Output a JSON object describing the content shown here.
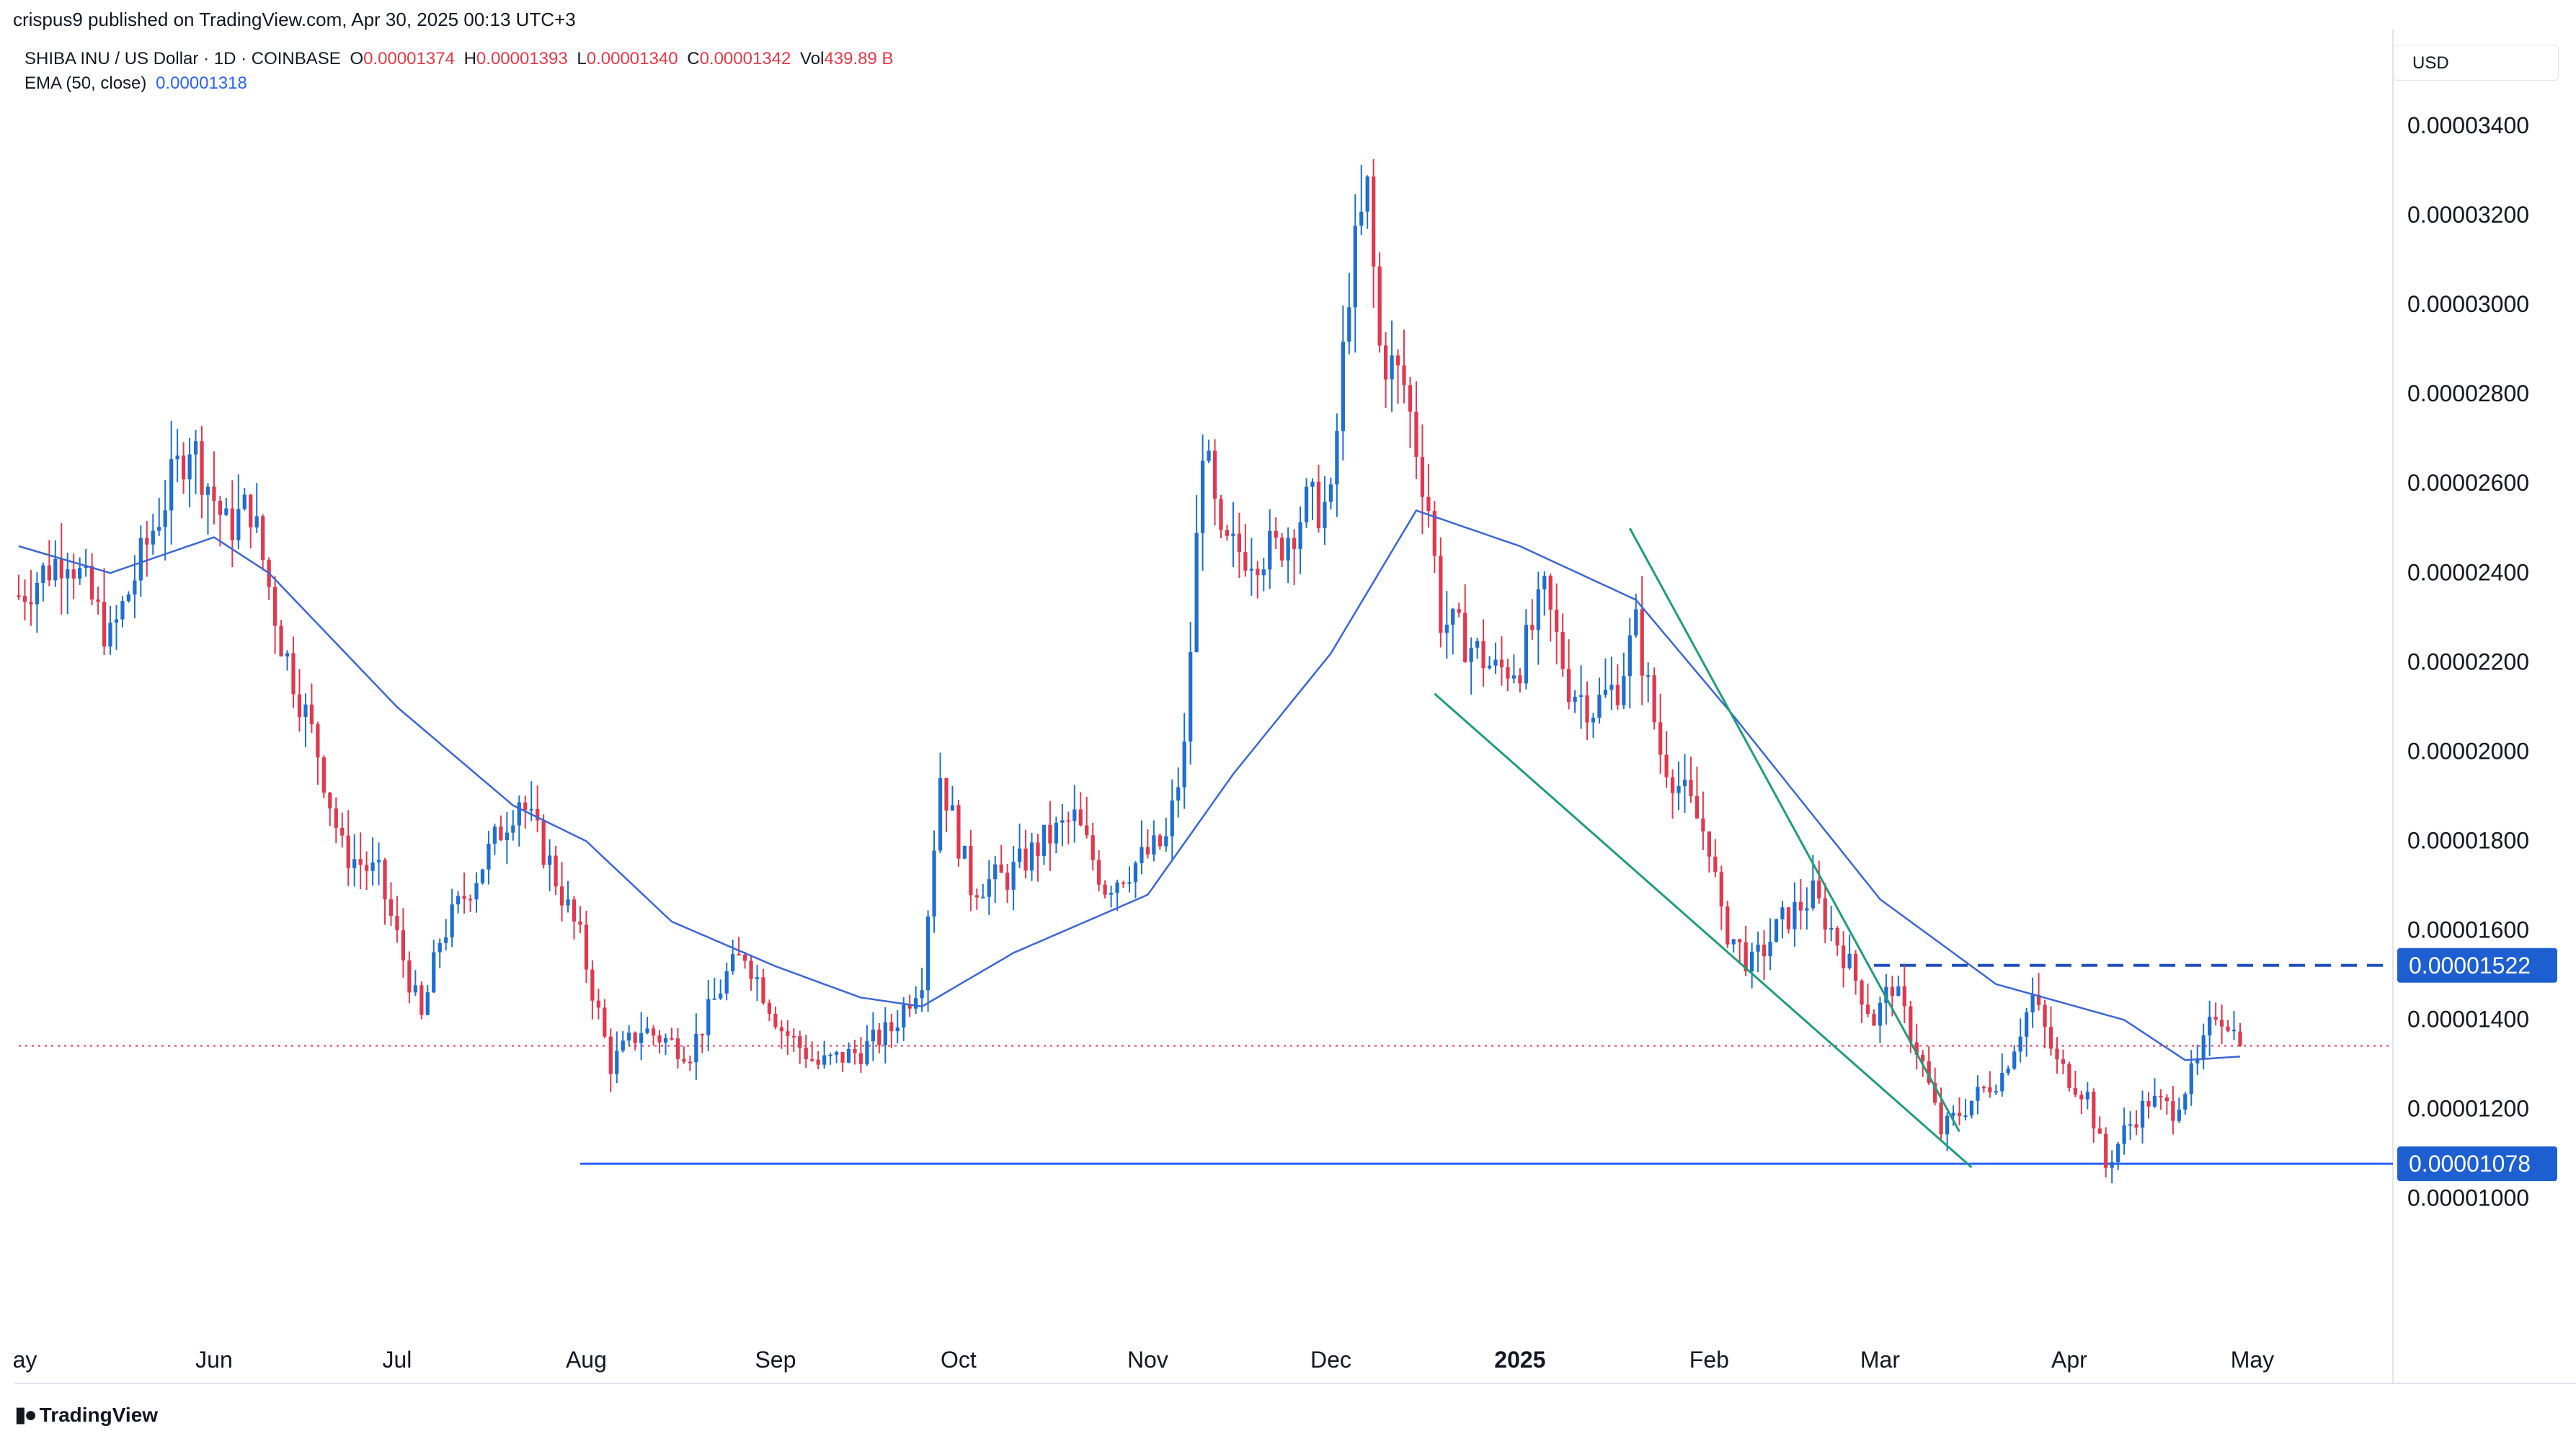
{
  "header": {
    "published_line": "crispus9 published on TradingView.com, Apr 30, 2025 00:13 UTC+3"
  },
  "legend": {
    "symbol": "SHIBA INU / US Dollar · 1D · COINBASE",
    "o_label": "O",
    "o_value": "0.00001374",
    "h_label": "H",
    "h_value": "0.00001393",
    "l_label": "L",
    "l_value": "0.00001340",
    "c_label": "C",
    "c_value": "0.00001342",
    "vol_label": "Vol",
    "vol_value": "439.89 B",
    "ema_label": "EMA (50, close)",
    "ema_value": "0.00001318"
  },
  "currency": "USD",
  "branding": {
    "logo_text": "TradingView",
    "logo_icon": "tradingview-logo-icon"
  },
  "colors": {
    "up": "#1e6fd0",
    "down": "#e0394f",
    "ema": "#3a66d6",
    "trendline": "#1f9d7a",
    "support_line": "#2962ff",
    "resistance_line": "#1e4fbf",
    "last_price_line": "#e0394f",
    "label_bg": "#1d5fd0"
  },
  "chart_data": {
    "type": "candlestick",
    "title": "SHIBA INU / US Dollar",
    "ylim": [
      7.8e-06,
      3.65e-05
    ],
    "y_ticks": [
      "0.00001000",
      "0.00001200",
      "0.00001400",
      "0.00001600",
      "0.00001800",
      "0.00002000",
      "0.00002200",
      "0.00002400",
      "0.00002600",
      "0.00002800",
      "0.00003000",
      "0.00003200",
      "0.00003400"
    ],
    "x_ticks": [
      "ay",
      "Jun",
      "Jul",
      "Aug",
      "Sep",
      "Oct",
      "Nov",
      "Dec",
      "2025",
      "Feb",
      "Mar",
      "Apr",
      "May"
    ],
    "x_tick_dates": [
      "2024-05-01",
      "2024-06-01",
      "2024-07-01",
      "2024-08-01",
      "2024-09-01",
      "2024-10-01",
      "2024-11-01",
      "2024-12-01",
      "2025-01-01",
      "2025-02-01",
      "2025-03-01",
      "2025-04-01",
      "2025-05-01"
    ],
    "bold_x_tick": "2025",
    "price_labels": [
      {
        "text": "0.00001522",
        "value": 1.522e-05
      },
      {
        "text": "0.00001078",
        "value": 1.078e-05
      }
    ],
    "horizontal_lines": [
      {
        "name": "resistance",
        "value": 1.522e-05,
        "style": "dashed",
        "from": "2025-02-28"
      },
      {
        "name": "support",
        "value": 1.078e-05,
        "style": "solid",
        "from": "2024-07-31"
      },
      {
        "name": "last-price",
        "value": 1.342e-05,
        "style": "dotted",
        "from": "2024-04-30"
      }
    ],
    "trendlines": [
      {
        "name": "upper-wedge-line",
        "start": [
          "2025-01-19",
          2.5e-05
        ],
        "end": [
          "2025-03-14",
          1.15e-05
        ]
      },
      {
        "name": "lower-wedge-line",
        "start": [
          "2024-12-18",
          2.13e-05
        ],
        "end": [
          "2025-03-16",
          1.07e-05
        ]
      }
    ],
    "close_anchors": [
      [
        "2024-04-30",
        2.35e-05
      ],
      [
        "2024-05-08",
        2.45e-05
      ],
      [
        "2024-05-15",
        2.25e-05
      ],
      [
        "2024-05-22",
        2.5e-05
      ],
      [
        "2024-05-28",
        2.7e-05
      ],
      [
        "2024-06-03",
        2.5e-05
      ],
      [
        "2024-06-07",
        2.55e-05
      ],
      [
        "2024-06-12",
        2.25e-05
      ],
      [
        "2024-06-18",
        2e-05
      ],
      [
        "2024-06-22",
        1.78e-05
      ],
      [
        "2024-06-28",
        1.72e-05
      ],
      [
        "2024-07-05",
        1.4e-05
      ],
      [
        "2024-07-08",
        1.58e-05
      ],
      [
        "2024-07-15",
        1.75e-05
      ],
      [
        "2024-07-21",
        1.9e-05
      ],
      [
        "2024-07-26",
        1.75e-05
      ],
      [
        "2024-07-31",
        1.58e-05
      ],
      [
        "2024-08-05",
        1.3e-05
      ],
      [
        "2024-08-10",
        1.38e-05
      ],
      [
        "2024-08-18",
        1.33e-05
      ],
      [
        "2024-08-24",
        1.5e-05
      ],
      [
        "2024-08-27",
        1.55e-05
      ],
      [
        "2024-09-02",
        1.38e-05
      ],
      [
        "2024-09-08",
        1.3e-05
      ],
      [
        "2024-09-15",
        1.33e-05
      ],
      [
        "2024-09-20",
        1.38e-05
      ],
      [
        "2024-09-25",
        1.5e-05
      ],
      [
        "2024-09-28",
        1.95e-05
      ],
      [
        "2024-10-03",
        1.7e-05
      ],
      [
        "2024-10-09",
        1.72e-05
      ],
      [
        "2024-10-15",
        1.8e-05
      ],
      [
        "2024-10-20",
        1.85e-05
      ],
      [
        "2024-10-25",
        1.7e-05
      ],
      [
        "2024-10-30",
        1.75e-05
      ],
      [
        "2024-11-04",
        1.8e-05
      ],
      [
        "2024-11-07",
        2e-05
      ],
      [
        "2024-11-10",
        2.7e-05
      ],
      [
        "2024-11-13",
        2.45e-05
      ],
      [
        "2024-11-18",
        2.45e-05
      ],
      [
        "2024-11-22",
        2.45e-05
      ],
      [
        "2024-11-27",
        2.55e-05
      ],
      [
        "2024-12-01",
        2.55e-05
      ],
      [
        "2024-12-04",
        3.05e-05
      ],
      [
        "2024-12-07",
        3.25e-05
      ],
      [
        "2024-12-09",
        2.9e-05
      ],
      [
        "2024-12-13",
        2.82e-05
      ],
      [
        "2024-12-17",
        2.55e-05
      ],
      [
        "2024-12-19",
        2.3e-05
      ],
      [
        "2024-12-23",
        2.25e-05
      ],
      [
        "2024-12-28",
        2.18e-05
      ],
      [
        "2025-01-01",
        2.2e-05
      ],
      [
        "2025-01-05",
        2.35e-05
      ],
      [
        "2025-01-09",
        2.15e-05
      ],
      [
        "2025-01-13",
        2.1e-05
      ],
      [
        "2025-01-17",
        2.15e-05
      ],
      [
        "2025-01-20",
        2.28e-05
      ],
      [
        "2025-01-24",
        2e-05
      ],
      [
        "2025-01-28",
        1.9e-05
      ],
      [
        "2025-02-01",
        1.8e-05
      ],
      [
        "2025-02-03",
        1.62e-05
      ],
      [
        "2025-02-08",
        1.52e-05
      ],
      [
        "2025-02-13",
        1.62e-05
      ],
      [
        "2025-02-18",
        1.68e-05
      ],
      [
        "2025-02-23",
        1.55e-05
      ],
      [
        "2025-02-28",
        1.4e-05
      ],
      [
        "2025-03-03",
        1.48e-05
      ],
      [
        "2025-03-08",
        1.3e-05
      ],
      [
        "2025-03-11",
        1.15e-05
      ],
      [
        "2025-03-16",
        1.22e-05
      ],
      [
        "2025-03-21",
        1.28e-05
      ],
      [
        "2025-03-26",
        1.45e-05
      ],
      [
        "2025-03-30",
        1.3e-05
      ],
      [
        "2025-04-04",
        1.23e-05
      ],
      [
        "2025-04-07",
        1.07e-05
      ],
      [
        "2025-04-10",
        1.15e-05
      ],
      [
        "2025-04-14",
        1.22e-05
      ],
      [
        "2025-04-18",
        1.2e-05
      ],
      [
        "2025-04-22",
        1.3e-05
      ],
      [
        "2025-04-25",
        1.42e-05
      ],
      [
        "2025-04-27",
        1.4e-05
      ],
      [
        "2025-04-29",
        1.342e-05
      ]
    ],
    "ema_anchors": [
      [
        "2024-04-30",
        2.46e-05
      ],
      [
        "2024-05-15",
        2.4e-05
      ],
      [
        "2024-06-01",
        2.48e-05
      ],
      [
        "2024-06-10",
        2.4e-05
      ],
      [
        "2024-07-01",
        2.1e-05
      ],
      [
        "2024-07-20",
        1.88e-05
      ],
      [
        "2024-08-01",
        1.8e-05
      ],
      [
        "2024-08-15",
        1.62e-05
      ],
      [
        "2024-09-01",
        1.52e-05
      ],
      [
        "2024-09-15",
        1.45e-05
      ],
      [
        "2024-09-25",
        1.43e-05
      ],
      [
        "2024-10-10",
        1.55e-05
      ],
      [
        "2024-11-01",
        1.68e-05
      ],
      [
        "2024-11-15",
        1.95e-05
      ],
      [
        "2024-12-01",
        2.22e-05
      ],
      [
        "2024-12-15",
        2.54e-05
      ],
      [
        "2025-01-01",
        2.46e-05
      ],
      [
        "2025-01-20",
        2.34e-05
      ],
      [
        "2025-02-05",
        2.08e-05
      ],
      [
        "2025-03-01",
        1.67e-05
      ],
      [
        "2025-03-20",
        1.48e-05
      ],
      [
        "2025-04-10",
        1.4e-05
      ],
      [
        "2025-04-20",
        1.31e-05
      ],
      [
        "2025-04-29",
        1.318e-05
      ]
    ]
  }
}
